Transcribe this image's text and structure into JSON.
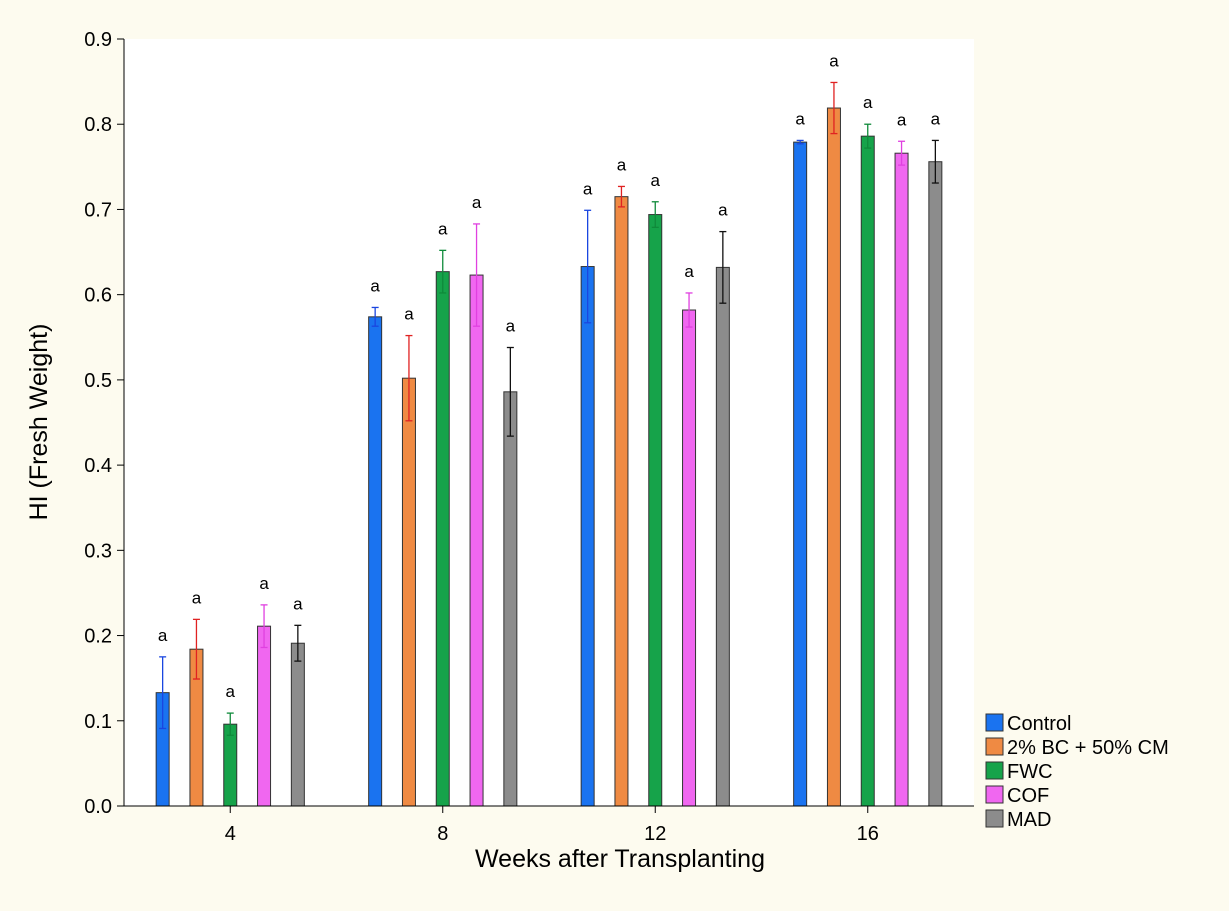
{
  "chart_data": {
    "type": "bar",
    "title": "",
    "xlabel": "Weeks after Transplanting",
    "ylabel": "HI (Fresh Weight)",
    "categories": [
      "4",
      "8",
      "12",
      "16"
    ],
    "ylim": [
      0,
      0.9
    ],
    "yticks": [
      "0.0",
      "0.1",
      "0.2",
      "0.3",
      "0.4",
      "0.5",
      "0.6",
      "0.7",
      "0.8",
      "0.9"
    ],
    "grid": false,
    "legend_position": "bottom-right",
    "series": [
      {
        "name": "Control",
        "color": "#1a73f0",
        "error_color": "#1a46e0",
        "values": [
          0.133,
          0.574,
          0.633,
          0.779
        ],
        "errors": [
          0.042,
          0.011,
          0.066,
          0.002
        ],
        "labels": [
          "a",
          "a",
          "a",
          "a"
        ]
      },
      {
        "name": "2% BC + 50% CM",
        "color": "#ef8a43",
        "error_color": "#e02222",
        "values": [
          0.184,
          0.502,
          0.715,
          0.819
        ],
        "errors": [
          0.035,
          0.05,
          0.012,
          0.03
        ],
        "labels": [
          "a",
          "a",
          "a",
          "a"
        ]
      },
      {
        "name": "FWC",
        "color": "#16a34a",
        "error_color": "#0f8a3a",
        "values": [
          0.096,
          0.627,
          0.694,
          0.786
        ],
        "errors": [
          0.013,
          0.025,
          0.015,
          0.014
        ],
        "labels": [
          "a",
          "a",
          "a",
          "a"
        ]
      },
      {
        "name": "COF",
        "color": "#f067f0",
        "error_color": "#e040e0",
        "values": [
          0.211,
          0.623,
          0.582,
          0.766
        ],
        "errors": [
          0.025,
          0.06,
          0.02,
          0.014
        ],
        "labels": [
          "a",
          "a",
          "a",
          "a"
        ]
      },
      {
        "name": "MAD",
        "color": "#8c8c8c",
        "error_color": "#111111",
        "values": [
          0.191,
          0.486,
          0.632,
          0.756
        ],
        "errors": [
          0.021,
          0.052,
          0.042,
          0.025
        ],
        "labels": [
          "a",
          "a",
          "a",
          "a"
        ]
      }
    ]
  }
}
